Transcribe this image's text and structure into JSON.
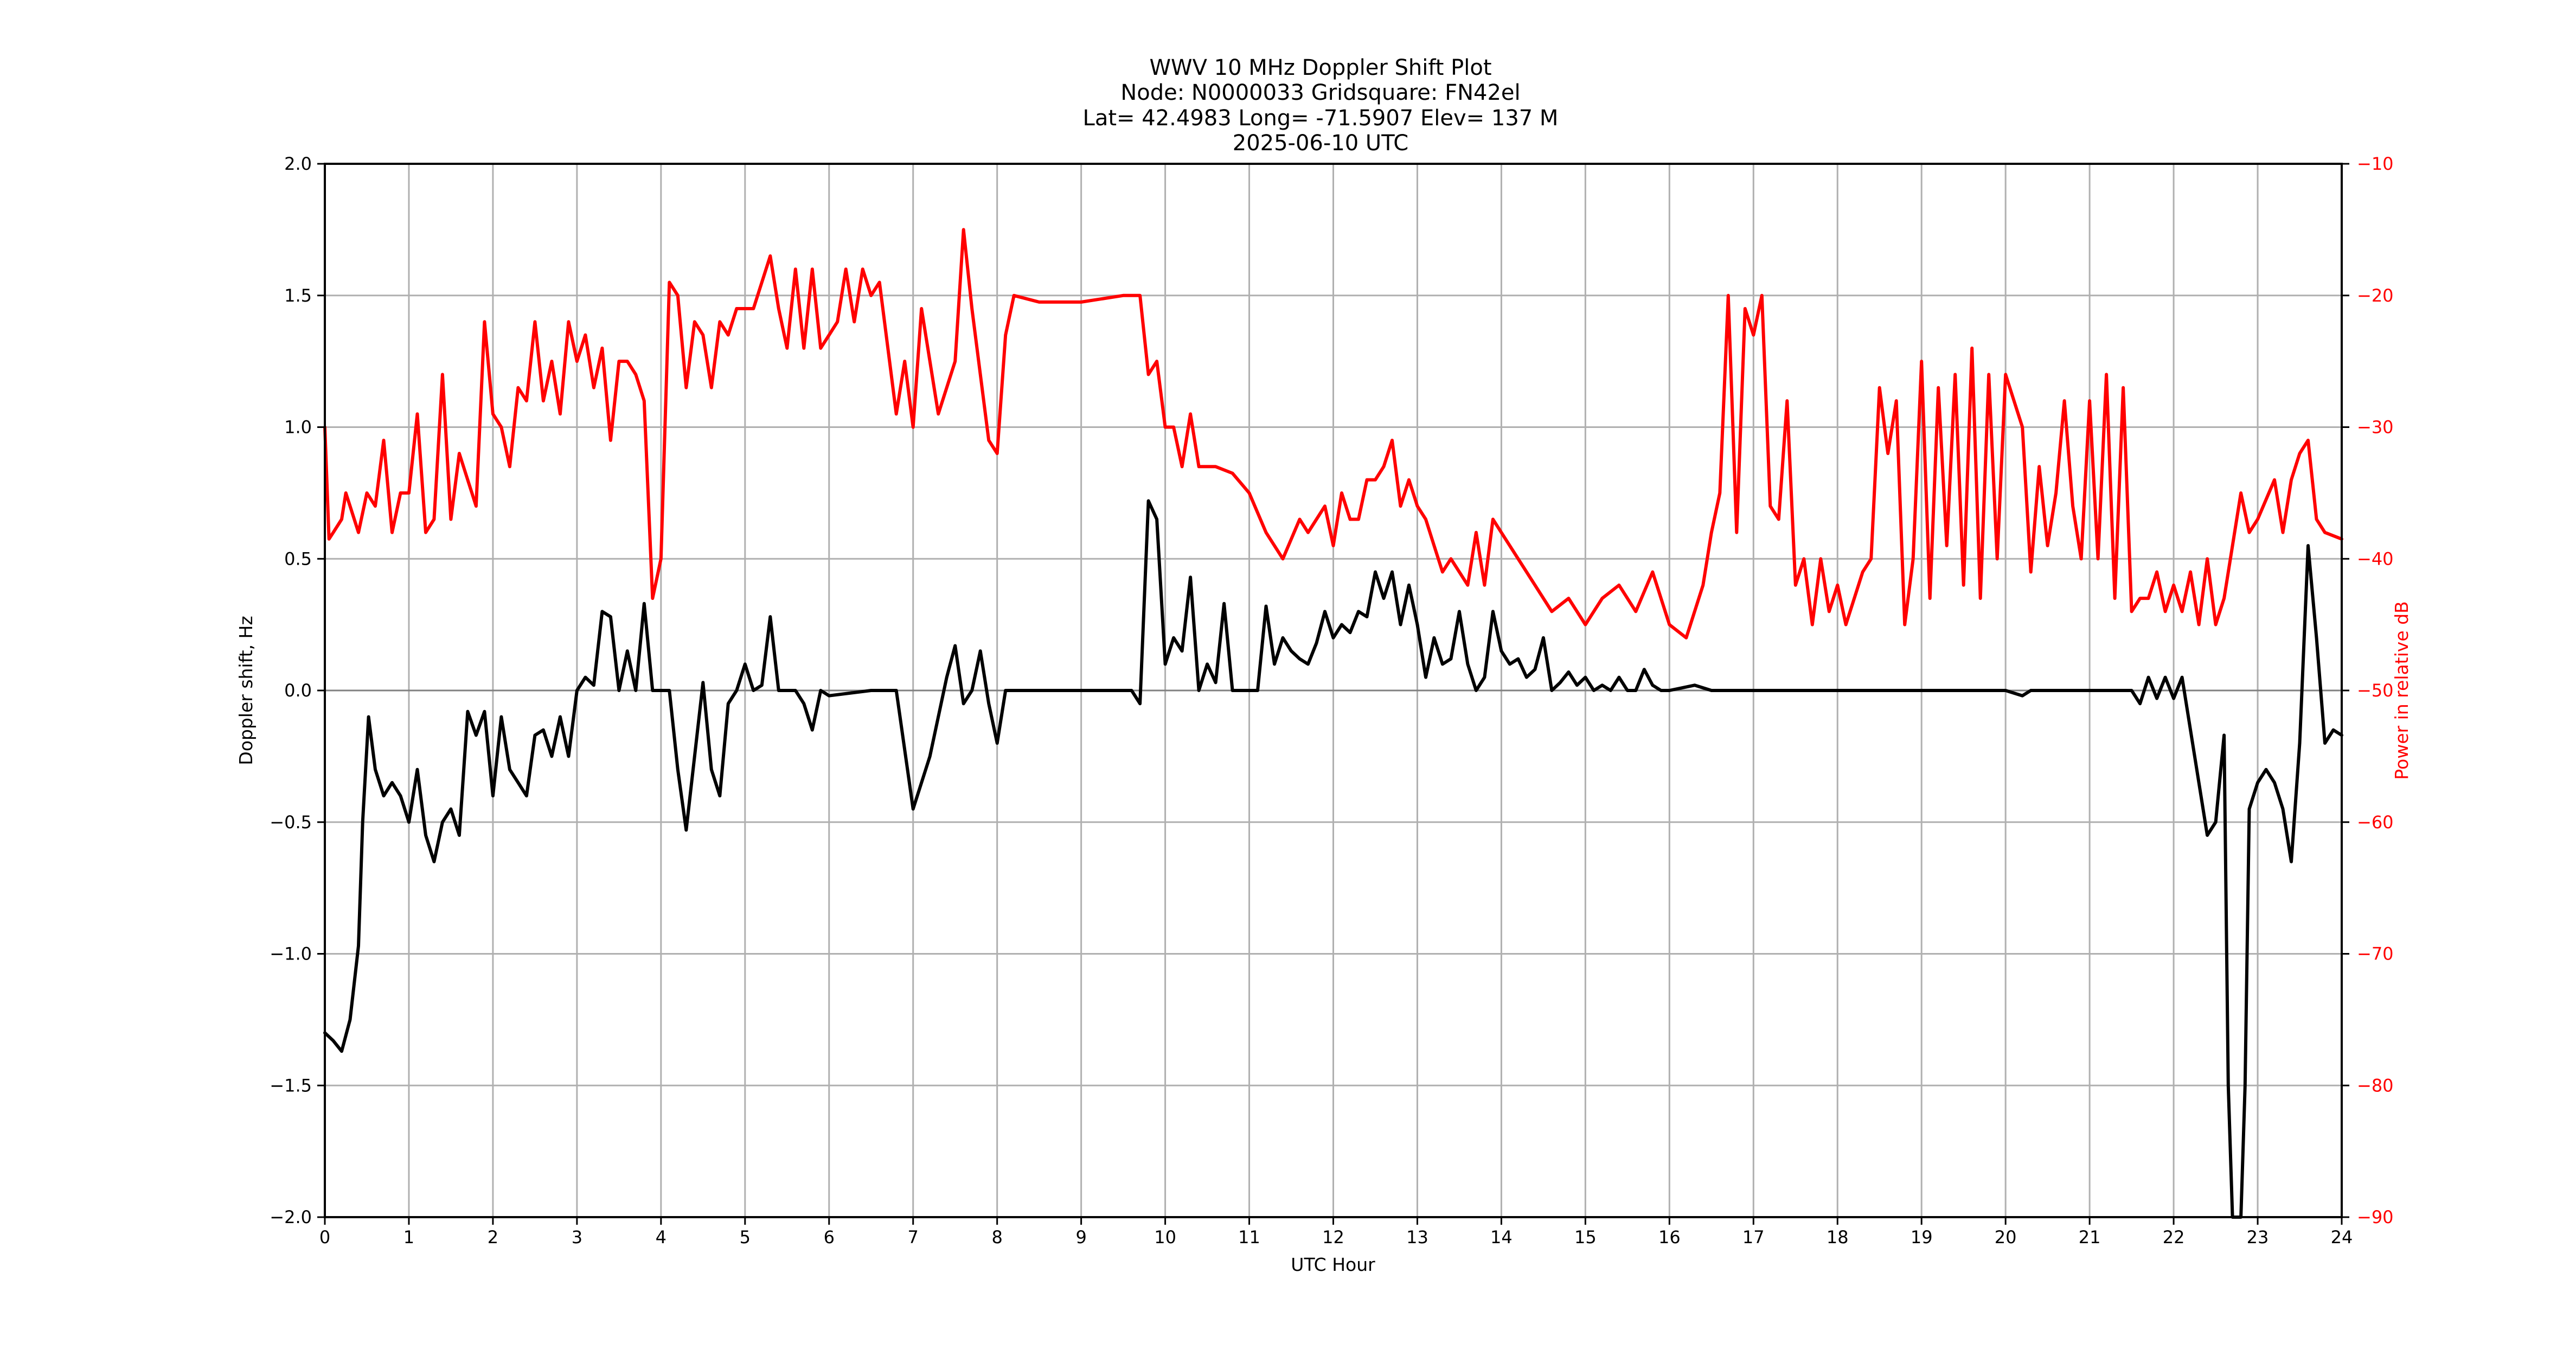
{
  "figure": {
    "title_lines": [
      "WWV 10 MHz Doppler Shift Plot",
      "Node:  N0000033     Gridsquare:  FN42el",
      "Lat= 42.4983    Long= -71.5907    Elev= 137 M",
      "2025-06-10  UTC"
    ],
    "xlabel": "UTC Hour",
    "ylabel_left": "Doppler shift, Hz",
    "ylabel_right": "Power in relative dB",
    "colors": {
      "doppler": "#000000",
      "power": "#ff0000",
      "grid": "#b0b0b0",
      "right_axis_text": "#ff0000"
    }
  },
  "chart_data": {
    "type": "line",
    "title": "WWV 10 MHz Doppler Shift Plot",
    "subtitle": "Node:  N0000033     Gridsquare:  FN42el | Lat= 42.4983    Long= -71.5907    Elev= 137 M | 2025-06-10  UTC",
    "xlabel": "UTC Hour",
    "ylabel": "Doppler shift, Hz",
    "y2label": "Power in relative dB",
    "xlim": [
      0,
      24
    ],
    "ylim": [
      -2.0,
      2.0
    ],
    "y2lim": [
      -90,
      -10
    ],
    "grid": true,
    "legend": null,
    "x_ticks": [
      0,
      1,
      2,
      3,
      4,
      5,
      6,
      7,
      8,
      9,
      10,
      11,
      12,
      13,
      14,
      15,
      16,
      17,
      18,
      19,
      20,
      21,
      22,
      23,
      24
    ],
    "y_ticks": [
      "-2.0",
      "-1.5",
      "-1.0",
      "-0.5",
      "0.0",
      "0.5",
      "1.0",
      "1.5",
      "2.0"
    ],
    "y2_ticks": [
      "-90",
      "-80",
      "-70",
      "-60",
      "-50",
      "-40",
      "-30",
      "-20",
      "-10"
    ],
    "series": [
      {
        "name": "Doppler shift, Hz",
        "axis": "left",
        "color": "#000000",
        "x": [
          0.0,
          0.1,
          0.2,
          0.3,
          0.4,
          0.45,
          0.52,
          0.6,
          0.7,
          0.8,
          0.9,
          1.0,
          1.1,
          1.2,
          1.3,
          1.4,
          1.5,
          1.6,
          1.7,
          1.8,
          1.9,
          2.0,
          2.1,
          2.2,
          2.3,
          2.4,
          2.5,
          2.6,
          2.7,
          2.8,
          2.9,
          3.0,
          3.1,
          3.2,
          3.3,
          3.4,
          3.5,
          3.6,
          3.7,
          3.8,
          3.9,
          4.0,
          4.1,
          4.2,
          4.3,
          4.4,
          4.5,
          4.6,
          4.7,
          4.8,
          4.9,
          5.0,
          5.1,
          5.2,
          5.3,
          5.4,
          5.5,
          5.6,
          5.7,
          5.8,
          5.9,
          6.0,
          6.5,
          6.8,
          7.0,
          7.2,
          7.4,
          7.5,
          7.6,
          7.7,
          7.8,
          7.9,
          8.0,
          8.1,
          8.5,
          9.0,
          9.6,
          9.7,
          9.8,
          9.9,
          10.0,
          10.1,
          10.2,
          10.3,
          10.4,
          10.5,
          10.6,
          10.7,
          10.8,
          10.9,
          11.0,
          11.1,
          11.2,
          11.3,
          11.4,
          11.5,
          11.6,
          11.7,
          11.8,
          11.9,
          12.0,
          12.1,
          12.2,
          12.3,
          12.4,
          12.5,
          12.6,
          12.7,
          12.8,
          12.9,
          13.0,
          13.1,
          13.2,
          13.3,
          13.4,
          13.5,
          13.6,
          13.7,
          13.8,
          13.9,
          14.0,
          14.1,
          14.2,
          14.3,
          14.4,
          14.5,
          14.6,
          14.7,
          14.8,
          14.9,
          15.0,
          15.1,
          15.2,
          15.3,
          15.4,
          15.5,
          15.6,
          15.7,
          15.8,
          15.9,
          16.0,
          16.3,
          16.5,
          17.0,
          18.0,
          19.0,
          20.0,
          20.2,
          20.3,
          21.0,
          21.5,
          21.6,
          21.7,
          21.8,
          21.9,
          22.0,
          22.1,
          22.2,
          22.3,
          22.4,
          22.5,
          22.6,
          22.65,
          22.7,
          22.8,
          22.85,
          22.9,
          23.0,
          23.1,
          23.2,
          23.3,
          23.4,
          23.5,
          23.6,
          23.7,
          23.8,
          23.9,
          24.0
        ],
        "values": [
          -1.3,
          -1.33,
          -1.37,
          -1.25,
          -0.97,
          -0.5,
          -0.1,
          -0.3,
          -0.4,
          -0.35,
          -0.4,
          -0.5,
          -0.3,
          -0.55,
          -0.65,
          -0.5,
          -0.45,
          -0.55,
          -0.08,
          -0.17,
          -0.08,
          -0.4,
          -0.1,
          -0.3,
          -0.35,
          -0.4,
          -0.17,
          -0.15,
          -0.25,
          -0.1,
          -0.25,
          0.0,
          0.05,
          0.02,
          0.3,
          0.28,
          0.0,
          0.15,
          0.0,
          0.33,
          0.0,
          0.0,
          0.0,
          -0.3,
          -0.53,
          -0.25,
          0.03,
          -0.3,
          -0.4,
          -0.05,
          0.0,
          0.1,
          0.0,
          0.02,
          0.28,
          0.0,
          0.0,
          0.0,
          -0.05,
          -0.15,
          0.0,
          -0.02,
          0.0,
          0.0,
          -0.45,
          -0.25,
          0.05,
          0.17,
          -0.05,
          0.0,
          0.15,
          -0.05,
          -0.2,
          0.0,
          0.0,
          0.0,
          0.0,
          -0.05,
          0.72,
          0.65,
          0.1,
          0.2,
          0.15,
          0.43,
          0.0,
          0.1,
          0.03,
          0.33,
          0.0,
          0.0,
          0.0,
          0.0,
          0.32,
          0.1,
          0.2,
          0.15,
          0.12,
          0.1,
          0.18,
          0.3,
          0.2,
          0.25,
          0.22,
          0.3,
          0.28,
          0.45,
          0.35,
          0.45,
          0.25,
          0.4,
          0.25,
          0.05,
          0.2,
          0.1,
          0.12,
          0.3,
          0.1,
          0.0,
          0.05,
          0.3,
          0.15,
          0.1,
          0.12,
          0.05,
          0.08,
          0.2,
          0.0,
          0.03,
          0.07,
          0.02,
          0.05,
          0.0,
          0.02,
          0.0,
          0.05,
          0.0,
          0.0,
          0.08,
          0.02,
          0.0,
          0.0,
          0.02,
          0.0,
          0.0,
          0.0,
          0.0,
          0.0,
          -0.02,
          0.0,
          0.0,
          0.0,
          -0.05,
          0.05,
          -0.03,
          0.05,
          -0.03,
          0.05,
          -0.15,
          -0.35,
          -0.55,
          -0.5,
          -0.17,
          -1.5,
          -2.0,
          -2.0,
          -1.5,
          -0.45,
          -0.35,
          -0.3,
          -0.35,
          -0.45,
          -0.65,
          -0.2,
          0.55,
          0.2,
          -0.2,
          -0.15,
          -0.17
        ]
      },
      {
        "name": "Power in relative dB",
        "axis": "right",
        "color": "#ff0000",
        "x": [
          0.0,
          0.05,
          0.1,
          0.2,
          0.25,
          0.3,
          0.4,
          0.5,
          0.6,
          0.7,
          0.8,
          0.9,
          1.0,
          1.1,
          1.2,
          1.3,
          1.4,
          1.5,
          1.6,
          1.7,
          1.8,
          1.9,
          2.0,
          2.1,
          2.2,
          2.3,
          2.4,
          2.5,
          2.6,
          2.7,
          2.8,
          2.9,
          3.0,
          3.1,
          3.2,
          3.3,
          3.4,
          3.5,
          3.6,
          3.7,
          3.8,
          3.9,
          4.0,
          4.1,
          4.2,
          4.3,
          4.4,
          4.5,
          4.6,
          4.7,
          4.8,
          4.9,
          5.0,
          5.1,
          5.2,
          5.3,
          5.4,
          5.5,
          5.6,
          5.7,
          5.8,
          5.9,
          6.0,
          6.1,
          6.2,
          6.3,
          6.4,
          6.5,
          6.6,
          6.8,
          6.9,
          7.0,
          7.1,
          7.2,
          7.3,
          7.4,
          7.5,
          7.6,
          7.7,
          7.8,
          7.9,
          8.0,
          8.1,
          8.2,
          8.5,
          9.0,
          9.5,
          9.7,
          9.8,
          9.9,
          10.0,
          10.1,
          10.2,
          10.3,
          10.4,
          10.6,
          10.8,
          11.0,
          11.2,
          11.4,
          11.6,
          11.7,
          11.9,
          12.0,
          12.1,
          12.2,
          12.3,
          12.4,
          12.5,
          12.6,
          12.7,
          12.8,
          12.9,
          13.0,
          13.1,
          13.2,
          13.3,
          13.4,
          13.5,
          13.6,
          13.7,
          13.8,
          13.9,
          14.0,
          14.2,
          14.4,
          14.6,
          14.8,
          15.0,
          15.2,
          15.4,
          15.6,
          15.8,
          16.0,
          16.2,
          16.4,
          16.5,
          16.6,
          16.7,
          16.8,
          16.9,
          17.0,
          17.1,
          17.2,
          17.3,
          17.4,
          17.5,
          17.6,
          17.7,
          17.8,
          17.9,
          18.0,
          18.1,
          18.3,
          18.4,
          18.5,
          18.6,
          18.7,
          18.8,
          18.9,
          19.0,
          19.1,
          19.2,
          19.3,
          19.4,
          19.5,
          19.6,
          19.7,
          19.8,
          19.9,
          20.0,
          20.1,
          20.2,
          20.3,
          20.4,
          20.5,
          20.6,
          20.7,
          20.8,
          20.9,
          21.0,
          21.1,
          21.2,
          21.3,
          21.4,
          21.5,
          21.6,
          21.7,
          21.8,
          21.9,
          22.0,
          22.1,
          22.2,
          22.3,
          22.4,
          22.5,
          22.6,
          22.7,
          22.8,
          22.9,
          23.0,
          23.2,
          23.3,
          23.4,
          23.5,
          23.6,
          23.7,
          23.8,
          24.0
        ],
        "values": [
          -30,
          -38.5,
          -38,
          -37,
          -35,
          -36,
          -38,
          -35,
          -36,
          -31,
          -38,
          -35,
          -35,
          -29,
          -38,
          -37,
          -26,
          -37,
          -32,
          -34,
          -36,
          -22,
          -29,
          -30,
          -33,
          -27,
          -28,
          -22,
          -28,
          -25,
          -29,
          -22,
          -25,
          -23,
          -27,
          -24,
          -31,
          -25,
          -25,
          -26,
          -28,
          -43,
          -40,
          -19,
          -20,
          -27,
          -22,
          -23,
          -27,
          -22,
          -23,
          -21,
          -21,
          -21,
          -19,
          -17,
          -21,
          -24,
          -18,
          -24,
          -18,
          -24,
          -23,
          -22,
          -18,
          -22,
          -18,
          -20,
          -19,
          -29,
          -25,
          -30,
          -21,
          -25,
          -29,
          -27,
          -25,
          -15,
          -21,
          -26,
          -31,
          -32,
          -23,
          -20,
          -20.5,
          -20.5,
          -20,
          -20,
          -26,
          -25,
          -30,
          -30,
          -33,
          -29,
          -33,
          -33,
          -33.5,
          -35,
          -38,
          -40,
          -37,
          -38,
          -36,
          -39,
          -35,
          -37,
          -37,
          -34,
          -34,
          -33,
          -31,
          -36,
          -34,
          -36,
          -37,
          -39,
          -41,
          -40,
          -41,
          -42,
          -38,
          -42,
          -37,
          -38,
          -40,
          -42,
          -44,
          -43,
          -45,
          -43,
          -42,
          -44,
          -41,
          -45,
          -46,
          -42,
          -38,
          -35,
          -20,
          -38,
          -21,
          -23,
          -20,
          -36,
          -37,
          -28,
          -42,
          -40,
          -45,
          -40,
          -44,
          -42,
          -45,
          -41,
          -40,
          -27,
          -32,
          -28,
          -45,
          -40,
          -25,
          -43,
          -27,
          -39,
          -26,
          -42,
          -24,
          -43,
          -26,
          -40,
          -26,
          -28,
          -30,
          -41,
          -33,
          -39,
          -35,
          -28,
          -36,
          -40,
          -28,
          -40,
          -26,
          -43,
          -27,
          -44,
          -43,
          -43,
          -41,
          -44,
          -42,
          -44,
          -41,
          -45,
          -40,
          -45,
          -43,
          -39,
          -35,
          -38,
          -37,
          -34,
          -38,
          -34,
          -32,
          -31,
          -37,
          -38,
          -38.5
        ]
      }
    ]
  }
}
